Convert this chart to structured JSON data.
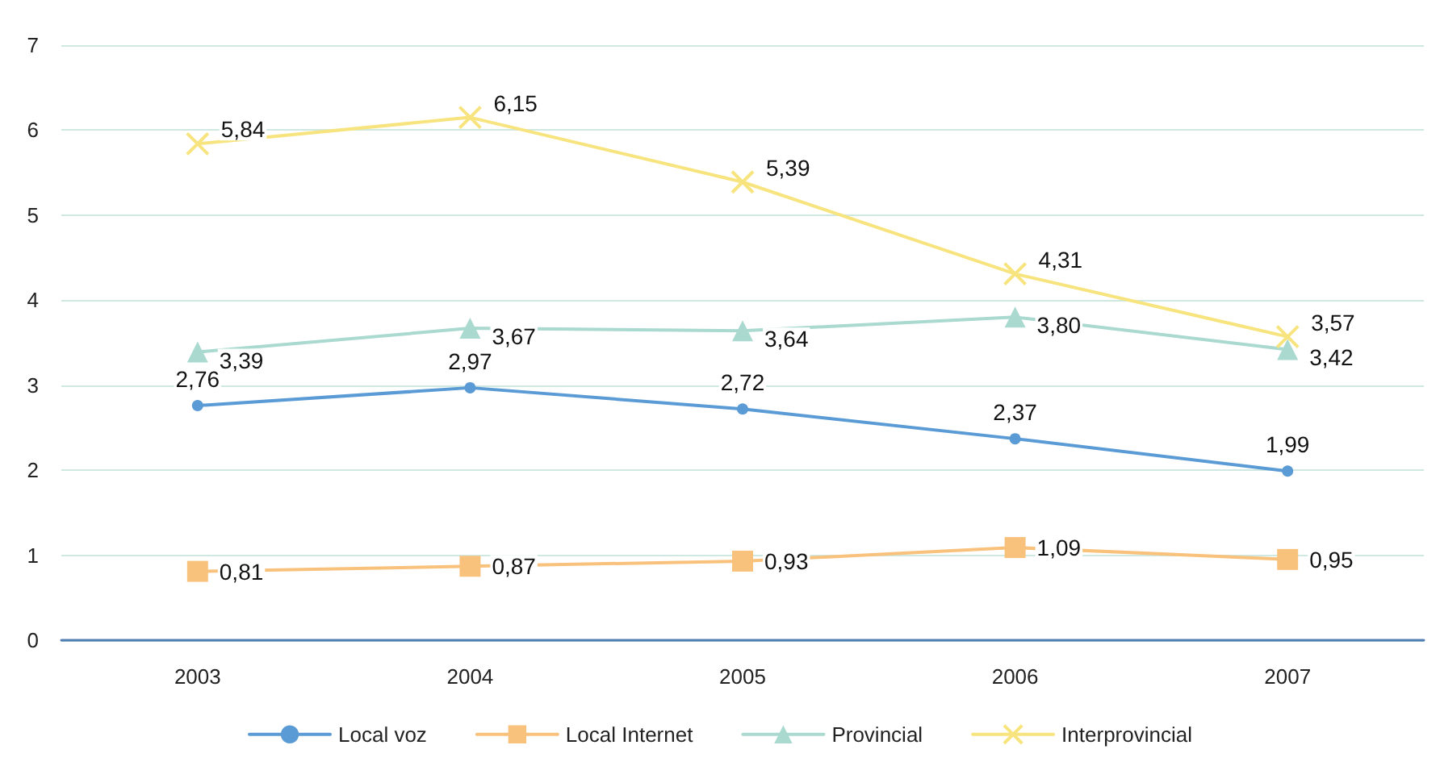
{
  "chart_data": {
    "type": "line",
    "categories": [
      "2003",
      "2004",
      "2005",
      "2006",
      "2007"
    ],
    "ylim": [
      0,
      7
    ],
    "yticks": [
      0,
      1,
      2,
      3,
      4,
      5,
      6,
      7
    ],
    "grid": "y",
    "legend": "bottom",
    "series": [
      {
        "name": "Local voz",
        "color": "#5b9bd5",
        "marker": "circle",
        "values": [
          2.76,
          2.97,
          2.72,
          2.37,
          1.99
        ],
        "value_labels": [
          "2,76",
          "2,97",
          "2,72",
          "2,37",
          "1,99"
        ]
      },
      {
        "name": "Local Internet",
        "color": "#f9c27c",
        "marker": "square",
        "values": [
          0.81,
          0.87,
          0.93,
          1.09,
          0.95
        ],
        "value_labels": [
          "0,81",
          "0,87",
          "0,93",
          "1,09",
          "0,95"
        ]
      },
      {
        "name": "Provincial",
        "color": "#a9d9cf",
        "marker": "triangle",
        "values": [
          3.39,
          3.67,
          3.64,
          3.8,
          3.42
        ],
        "value_labels": [
          "3,39",
          "3,67",
          "3,64",
          "3,80",
          "3,42"
        ]
      },
      {
        "name": "Interprovincial",
        "color": "#f7e47e",
        "marker": "cross",
        "values": [
          5.84,
          6.15,
          5.39,
          4.31,
          3.57
        ],
        "value_labels": [
          "5,84",
          "6,15",
          "5,39",
          "4,31",
          "3,57"
        ]
      }
    ]
  }
}
